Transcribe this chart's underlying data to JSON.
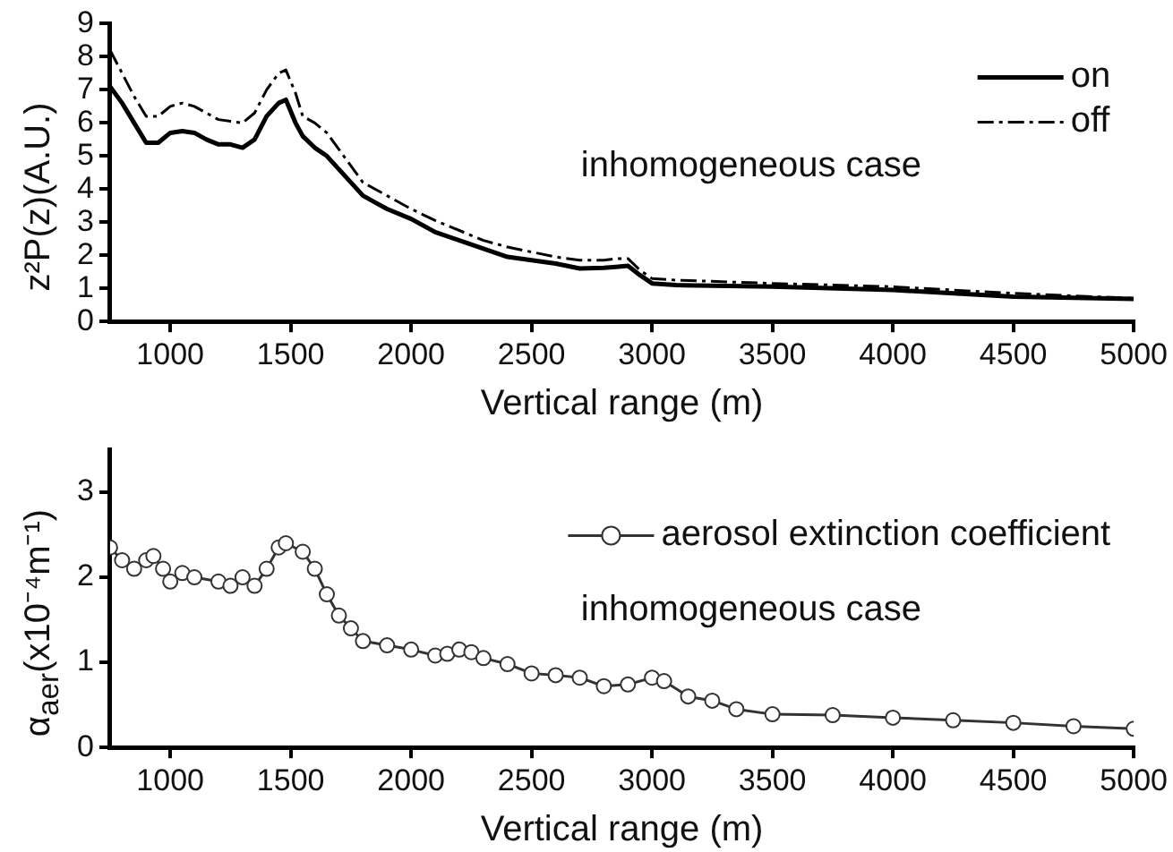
{
  "chart_data": [
    {
      "type": "line",
      "xlabel": "Vertical range (m)",
      "ylabel": "z²P(z)(A.U.)",
      "annotations": [
        "inhomogeneous case"
      ],
      "xlim": [
        750,
        5000
      ],
      "xticks": [
        1000,
        1500,
        2000,
        2500,
        3000,
        3500,
        4000,
        4500,
        5000
      ],
      "ylim": [
        0,
        9
      ],
      "yticks": [
        0,
        1,
        2,
        3,
        4,
        5,
        6,
        7,
        8,
        9
      ],
      "grid": false,
      "legend": "top right",
      "marker": "none",
      "x": [
        750,
        800,
        850,
        900,
        950,
        1000,
        1050,
        1100,
        1150,
        1200,
        1250,
        1300,
        1350,
        1400,
        1450,
        1480,
        1520,
        1550,
        1600,
        1650,
        1700,
        1750,
        1800,
        1850,
        1900,
        2000,
        2100,
        2200,
        2300,
        2400,
        2500,
        2600,
        2700,
        2800,
        2850,
        2900,
        2950,
        3000,
        3100,
        3500,
        4000,
        4500,
        5000
      ],
      "series": [
        {
          "name": "on",
          "color": "#000000",
          "line_style": "solid",
          "values": [
            7.1,
            6.6,
            6.0,
            5.4,
            5.4,
            5.7,
            5.75,
            5.7,
            5.5,
            5.35,
            5.35,
            5.25,
            5.5,
            6.2,
            6.6,
            6.7,
            6.0,
            5.6,
            5.25,
            5.0,
            4.6,
            4.2,
            3.8,
            3.6,
            3.4,
            3.1,
            2.7,
            2.45,
            2.2,
            1.95,
            1.85,
            1.75,
            1.6,
            1.62,
            1.65,
            1.68,
            1.4,
            1.15,
            1.1,
            1.05,
            0.95,
            0.75,
            0.68
          ]
        },
        {
          "name": "off",
          "color": "#000000",
          "line_style": "dashed",
          "values": [
            8.2,
            7.5,
            6.8,
            6.2,
            6.2,
            6.5,
            6.6,
            6.5,
            6.3,
            6.1,
            6.05,
            6.0,
            6.3,
            7.0,
            7.5,
            7.6,
            6.9,
            6.2,
            6.0,
            5.7,
            5.2,
            4.7,
            4.2,
            4.0,
            3.8,
            3.4,
            3.05,
            2.75,
            2.45,
            2.25,
            2.1,
            1.95,
            1.85,
            1.85,
            1.9,
            1.9,
            1.55,
            1.3,
            1.25,
            1.15,
            1.05,
            0.85,
            0.7
          ]
        }
      ]
    },
    {
      "type": "line",
      "xlabel": "Vertical range (m)",
      "ylabel": "α$_{aer}$(x10⁻⁴m⁻¹)",
      "annotations": [
        "inhomogeneous case"
      ],
      "xlim": [
        750,
        5000
      ],
      "xticks": [
        1000,
        1500,
        2000,
        2500,
        3000,
        3500,
        4000,
        4500,
        5000
      ],
      "ylim": [
        0,
        3.5
      ],
      "yticks": [
        0,
        1,
        2,
        3
      ],
      "grid": false,
      "legend": "top right",
      "marker": "circle",
      "line_style": "solid",
      "x": [
        750,
        800,
        850,
        900,
        930,
        970,
        1000,
        1050,
        1100,
        1200,
        1250,
        1300,
        1350,
        1400,
        1450,
        1480,
        1550,
        1600,
        1650,
        1700,
        1750,
        1800,
        1900,
        2000,
        2100,
        2150,
        2200,
        2250,
        2300,
        2400,
        2500,
        2600,
        2700,
        2800,
        2900,
        3000,
        3050,
        3150,
        3250,
        3350,
        3500,
        3750,
        4000,
        4250,
        4500,
        4750,
        5000
      ],
      "series": [
        {
          "name": "aerosol extinction coefficient",
          "color": "#333333",
          "values": [
            2.35,
            2.2,
            2.1,
            2.2,
            2.25,
            2.1,
            1.95,
            2.05,
            2.0,
            1.95,
            1.9,
            2.0,
            1.9,
            2.1,
            2.35,
            2.4,
            2.3,
            2.1,
            1.8,
            1.55,
            1.4,
            1.25,
            1.2,
            1.15,
            1.08,
            1.1,
            1.15,
            1.12,
            1.05,
            0.98,
            0.87,
            0.85,
            0.82,
            0.72,
            0.74,
            0.82,
            0.78,
            0.6,
            0.55,
            0.45,
            0.39,
            0.38,
            0.35,
            0.32,
            0.29,
            0.25,
            0.22
          ]
        }
      ]
    }
  ]
}
